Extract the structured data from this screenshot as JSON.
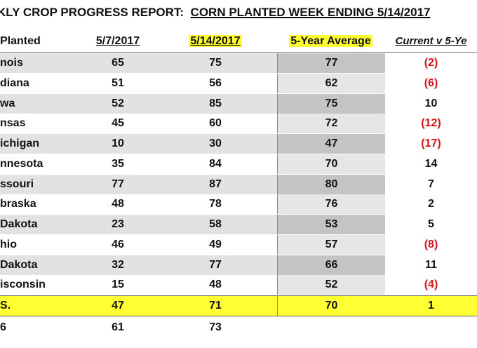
{
  "header": {
    "title_prefix": "KLY CROP PROGRESS REPORT:",
    "title_underlined": "CORN PLANTED WEEK ENDING 5/14/2017"
  },
  "table": {
    "columns": [
      "Planted",
      "5/7/2017",
      "5/14/2017",
      "5-Year Average",
      "Current v 5-Ye"
    ],
    "rows": [
      [
        "nois",
        65,
        75,
        77,
        "(2)"
      ],
      [
        "diana",
        51,
        56,
        62,
        "(6)"
      ],
      [
        "wa",
        52,
        85,
        75,
        10
      ],
      [
        "nsas",
        45,
        60,
        72,
        "(12)"
      ],
      [
        "ichigan",
        10,
        30,
        47,
        "(17)"
      ],
      [
        "nnesota",
        35,
        84,
        70,
        14
      ],
      [
        "ssouri",
        77,
        87,
        80,
        7
      ],
      [
        "braska",
        48,
        78,
        76,
        2
      ],
      [
        "Dakota",
        23,
        58,
        53,
        5
      ],
      [
        "hio",
        46,
        49,
        57,
        "(8)"
      ],
      [
        "Dakota",
        32,
        77,
        66,
        11
      ],
      [
        "isconsin",
        15,
        48,
        52,
        "(4)"
      ],
      [
        "S.",
        47,
        71,
        70,
        1
      ],
      [
        "6",
        61,
        73
      ]
    ]
  }
}
